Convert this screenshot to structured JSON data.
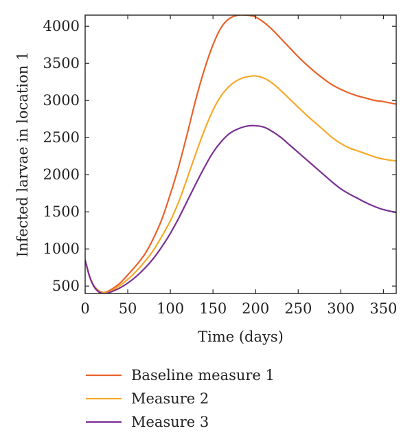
{
  "chart_data": {
    "type": "line",
    "xlabel": "Time (days)",
    "ylabel": "Infected larvae in location 1",
    "xlim": [
      0,
      365
    ],
    "ylim": [
      400,
      4150
    ],
    "xticks": [
      0,
      50,
      100,
      150,
      200,
      250,
      300,
      350
    ],
    "yticks": [
      500,
      1000,
      1500,
      2000,
      2500,
      3000,
      3500,
      4000
    ],
    "grid": false,
    "legend_position": "bottom",
    "series": [
      {
        "name": "Baseline measure 1",
        "color": "#e8622a",
        "points": [
          [
            0,
            850
          ],
          [
            5,
            640
          ],
          [
            10,
            510
          ],
          [
            15,
            445
          ],
          [
            20,
            415
          ],
          [
            25,
            420
          ],
          [
            30,
            450
          ],
          [
            40,
            530
          ],
          [
            50,
            650
          ],
          [
            60,
            780
          ],
          [
            70,
            930
          ],
          [
            80,
            1140
          ],
          [
            90,
            1400
          ],
          [
            100,
            1740
          ],
          [
            110,
            2120
          ],
          [
            120,
            2560
          ],
          [
            130,
            3020
          ],
          [
            140,
            3420
          ],
          [
            150,
            3750
          ],
          [
            160,
            3990
          ],
          [
            170,
            4110
          ],
          [
            180,
            4150
          ],
          [
            190,
            4150
          ],
          [
            195,
            4140
          ],
          [
            200,
            4125
          ],
          [
            210,
            4050
          ],
          [
            220,
            3950
          ],
          [
            230,
            3830
          ],
          [
            240,
            3710
          ],
          [
            250,
            3590
          ],
          [
            260,
            3480
          ],
          [
            270,
            3380
          ],
          [
            280,
            3290
          ],
          [
            290,
            3210
          ],
          [
            300,
            3150
          ],
          [
            310,
            3100
          ],
          [
            320,
            3060
          ],
          [
            330,
            3030
          ],
          [
            340,
            3000
          ],
          [
            350,
            2985
          ],
          [
            365,
            2950
          ]
        ]
      },
      {
        "name": "Measure 2",
        "color": "#f7a928",
        "points": [
          [
            0,
            850
          ],
          [
            5,
            640
          ],
          [
            10,
            505
          ],
          [
            15,
            440
          ],
          [
            20,
            410
          ],
          [
            25,
            410
          ],
          [
            30,
            430
          ],
          [
            40,
            500
          ],
          [
            50,
            590
          ],
          [
            60,
            700
          ],
          [
            70,
            830
          ],
          [
            80,
            980
          ],
          [
            90,
            1170
          ],
          [
            100,
            1380
          ],
          [
            110,
            1640
          ],
          [
            120,
            1960
          ],
          [
            130,
            2290
          ],
          [
            140,
            2600
          ],
          [
            150,
            2870
          ],
          [
            160,
            3070
          ],
          [
            170,
            3200
          ],
          [
            180,
            3280
          ],
          [
            190,
            3320
          ],
          [
            200,
            3330
          ],
          [
            210,
            3300
          ],
          [
            220,
            3230
          ],
          [
            230,
            3130
          ],
          [
            240,
            3020
          ],
          [
            250,
            2910
          ],
          [
            260,
            2800
          ],
          [
            270,
            2700
          ],
          [
            280,
            2600
          ],
          [
            290,
            2500
          ],
          [
            300,
            2420
          ],
          [
            310,
            2360
          ],
          [
            320,
            2320
          ],
          [
            330,
            2280
          ],
          [
            340,
            2240
          ],
          [
            350,
            2210
          ],
          [
            365,
            2185
          ]
        ]
      },
      {
        "name": "Measure 3",
        "color": "#7a2f93",
        "points": [
          [
            0,
            850
          ],
          [
            5,
            635
          ],
          [
            10,
            500
          ],
          [
            15,
            430
          ],
          [
            20,
            400
          ],
          [
            25,
            400
          ],
          [
            30,
            420
          ],
          [
            40,
            470
          ],
          [
            50,
            540
          ],
          [
            60,
            630
          ],
          [
            70,
            740
          ],
          [
            80,
            870
          ],
          [
            90,
            1030
          ],
          [
            100,
            1210
          ],
          [
            110,
            1420
          ],
          [
            120,
            1650
          ],
          [
            130,
            1880
          ],
          [
            140,
            2100
          ],
          [
            150,
            2300
          ],
          [
            160,
            2450
          ],
          [
            170,
            2560
          ],
          [
            180,
            2620
          ],
          [
            190,
            2655
          ],
          [
            200,
            2660
          ],
          [
            210,
            2640
          ],
          [
            220,
            2580
          ],
          [
            230,
            2500
          ],
          [
            240,
            2400
          ],
          [
            250,
            2300
          ],
          [
            260,
            2200
          ],
          [
            270,
            2100
          ],
          [
            280,
            2000
          ],
          [
            290,
            1900
          ],
          [
            300,
            1810
          ],
          [
            310,
            1740
          ],
          [
            320,
            1680
          ],
          [
            330,
            1620
          ],
          [
            340,
            1570
          ],
          [
            350,
            1530
          ],
          [
            365,
            1490
          ]
        ]
      }
    ]
  }
}
